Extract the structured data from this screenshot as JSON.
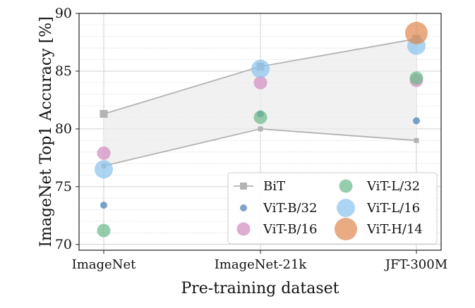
{
  "chart_data": {
    "type": "scatter",
    "xlabel": "Pre-training dataset",
    "ylabel": "ImageNet Top1 Accuracy [%]",
    "categories": [
      "ImageNet",
      "ImageNet-21k",
      "JFT-300M"
    ],
    "ylim": [
      69.5,
      90
    ],
    "yticks": [
      70,
      75,
      80,
      85,
      90
    ],
    "grid": true,
    "legend_position": "bottom-right",
    "bit_range": {
      "name": "BiT",
      "upper": [
        81.3,
        85.4,
        87.8
      ],
      "lower": [
        76.8,
        80.0,
        79.0
      ],
      "color": "#b3b3b3",
      "band_color": "#ececec"
    },
    "series": [
      {
        "name": "ViT-B/32",
        "values": [
          73.4,
          81.3,
          80.7
        ],
        "color": "#4a80b5",
        "size": "small"
      },
      {
        "name": "ViT-B/16",
        "values": [
          77.9,
          84.0,
          84.2
        ],
        "color": "#d48ec0",
        "size": "medium"
      },
      {
        "name": "ViT-L/32",
        "values": [
          71.2,
          81.0,
          84.4
        ],
        "color": "#6dbb8e",
        "size": "medium"
      },
      {
        "name": "ViT-L/16",
        "values": [
          76.5,
          85.2,
          87.2
        ],
        "color": "#8cc5ee",
        "size": "large"
      },
      {
        "name": "ViT-H/14",
        "values": [
          null,
          null,
          88.3
        ],
        "color": "#e08a52",
        "size": "xlarge"
      }
    ]
  }
}
